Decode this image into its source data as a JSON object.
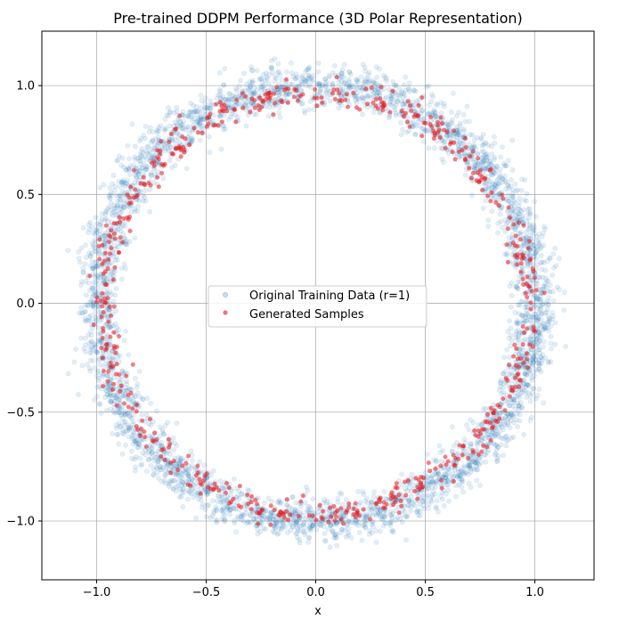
{
  "chart_data": {
    "type": "scatter",
    "title": "Pre-trained DDPM Performance (3D Polar Representation)",
    "xlabel": "x",
    "ylabel": "",
    "xlim": [
      -1.25,
      1.27
    ],
    "ylim": [
      -1.27,
      1.25
    ],
    "x_ticks": [
      -1.0,
      -0.5,
      0.0,
      0.5,
      1.0
    ],
    "y_ticks": [
      -1.0,
      -0.5,
      0.0,
      0.5,
      1.0
    ],
    "x_tick_labels": [
      "−1.0",
      "−0.5",
      "0.0",
      "0.5",
      "1.0"
    ],
    "y_tick_labels": [
      "−1.0",
      "−0.5",
      "0.0",
      "0.5",
      "1.0"
    ],
    "grid": true,
    "legend_position": "center",
    "series": [
      {
        "name": "Original Training Data (r=1)",
        "color": "#1f77b4",
        "alpha": 0.12,
        "shape": "ring",
        "radius": 1.0,
        "radial_std": 0.05,
        "count": 4000
      },
      {
        "name": "Generated Samples",
        "color": "#e8141a",
        "alpha": 0.55,
        "shape": "ring",
        "radius": 0.97,
        "radial_std": 0.03,
        "count": 600
      }
    ]
  }
}
